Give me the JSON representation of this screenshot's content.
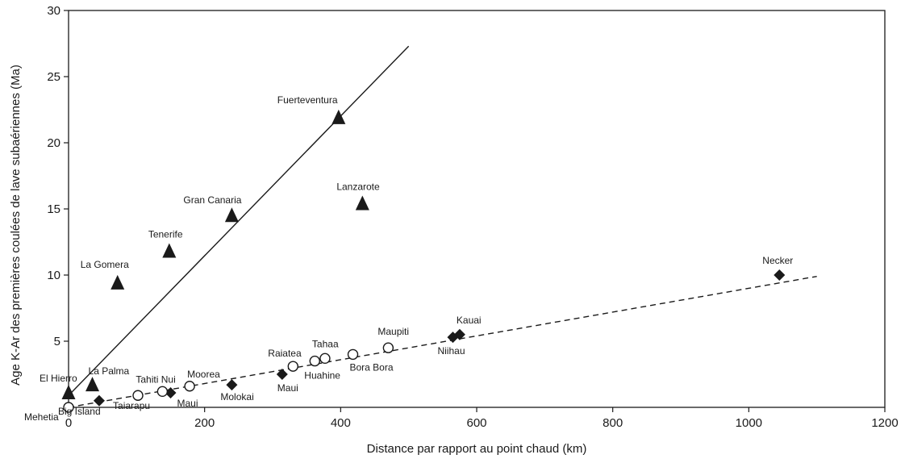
{
  "chart_data": {
    "type": "scatter",
    "xlabel": "Distance par rapport au point chaud (km)",
    "ylabel": "Age K-Ar des premières coulées de lave subaériennes (Ma)",
    "xlim": [
      0,
      1200
    ],
    "ylim": [
      0,
      30
    ],
    "xticks": [
      0,
      200,
      400,
      600,
      800,
      1000,
      1200
    ],
    "yticks": [
      5,
      10,
      15,
      20,
      25,
      30
    ],
    "grid": false,
    "legend": "none",
    "series": [
      {
        "marker": "triangle",
        "color": "#1a1a1a",
        "points": [
          {
            "label": "El Hierro",
            "x": 0,
            "y": 1.1
          },
          {
            "label": "La Palma",
            "x": 35,
            "y": 1.7
          },
          {
            "label": "La Gomera",
            "x": 72,
            "y": 9.4
          },
          {
            "label": "Tenerife",
            "x": 148,
            "y": 11.8
          },
          {
            "label": "Gran Canaria",
            "x": 240,
            "y": 14.5
          },
          {
            "label": "Fuerteventura",
            "x": 397,
            "y": 21.9
          },
          {
            "label": "Lanzarote",
            "x": 432,
            "y": 15.4
          }
        ]
      },
      {
        "marker": "diamond",
        "color": "#1a1a1a",
        "points": [
          {
            "label": "Big Island",
            "x": 45,
            "y": 0.5
          },
          {
            "label": "Maui",
            "x": 150,
            "y": 1.1
          },
          {
            "label": "Molokai",
            "x": 240,
            "y": 1.7
          },
          {
            "label": "Maui",
            "x": 314,
            "y": 2.5
          },
          {
            "label": "Niihau",
            "x": 565,
            "y": 5.3
          },
          {
            "label": "Kauai",
            "x": 575,
            "y": 5.5
          },
          {
            "label": "Necker",
            "x": 1045,
            "y": 10
          }
        ]
      },
      {
        "marker": "circle-open",
        "color": "#1a1a1a",
        "points": [
          {
            "label": "Mehetia",
            "x": 0,
            "y": 0
          },
          {
            "label": "Taiarapu",
            "x": 102,
            "y": 0.9
          },
          {
            "label": "Tahiti Nui",
            "x": 138,
            "y": 1.2
          },
          {
            "label": "Moorea",
            "x": 178,
            "y": 1.6
          },
          {
            "label": "Raiatea",
            "x": 330,
            "y": 3.1
          },
          {
            "label": "Huahine",
            "x": 362,
            "y": 3.5
          },
          {
            "label": "Tahaa",
            "x": 377,
            "y": 3.7
          },
          {
            "label": "Bora Bora",
            "x": 418,
            "y": 4.0
          },
          {
            "label": "Maupiti",
            "x": 470,
            "y": 4.5
          }
        ]
      }
    ],
    "trendlines": [
      {
        "style": "solid",
        "x": [
          0,
          500
        ],
        "y": [
          0.9,
          27.3
        ]
      },
      {
        "style": "dashed",
        "x": [
          0,
          1100
        ],
        "y": [
          0,
          9.9
        ]
      }
    ]
  }
}
